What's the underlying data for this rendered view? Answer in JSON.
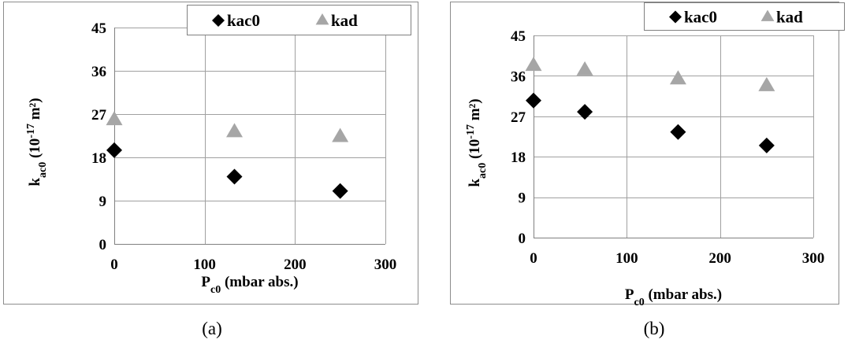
{
  "chart_data": [
    {
      "type": "scatter",
      "caption": "(a)",
      "xlim": [
        0,
        300
      ],
      "ylim": [
        0,
        45
      ],
      "x_ticks": [
        "0",
        "100",
        "200",
        "300"
      ],
      "y_ticks": [
        "0",
        "9",
        "18",
        "27",
        "36",
        "45"
      ],
      "grid": true,
      "legend_position": "top-right",
      "xlabel": {
        "main": "P",
        "sub": "c0",
        "rest": " (mbar abs.)"
      },
      "ylabel": {
        "main": "k",
        "sub": "ac0",
        "mid": " (10",
        "sup": "-17",
        "rest": " m²)"
      },
      "series": [
        {
          "name": "kac0",
          "marker": "diamond",
          "color": "#000000",
          "x": [
            0,
            133,
            250
          ],
          "y": [
            19.5,
            14,
            11
          ]
        },
        {
          "name": "kad",
          "marker": "triangle",
          "color": "#a6a6a6",
          "x": [
            0,
            133,
            250
          ],
          "y": [
            26,
            23.5,
            22.5
          ]
        }
      ]
    },
    {
      "type": "scatter",
      "caption": "(b)",
      "xlim": [
        0,
        300
      ],
      "ylim": [
        0,
        45
      ],
      "x_ticks": [
        "0",
        "100",
        "200",
        "300"
      ],
      "y_ticks": [
        "0",
        "9",
        "18",
        "27",
        "36",
        "45"
      ],
      "grid": true,
      "legend_position": "top-right",
      "xlabel": {
        "main": "P",
        "sub": "c0",
        "rest": " (mbar abs.)"
      },
      "ylabel": {
        "main": "k",
        "sub": "ac0",
        "mid": " (10",
        "sup": "-17",
        "rest": " m²)"
      },
      "series": [
        {
          "name": "kac0",
          "marker": "diamond",
          "color": "#000000",
          "x": [
            0,
            55,
            155,
            250
          ],
          "y": [
            30.5,
            28,
            23.5,
            20.5
          ]
        },
        {
          "name": "kad",
          "marker": "triangle",
          "color": "#a6a6a6",
          "x": [
            0,
            55,
            155,
            250
          ],
          "y": [
            38.5,
            37.5,
            35.5,
            34
          ]
        }
      ]
    }
  ]
}
